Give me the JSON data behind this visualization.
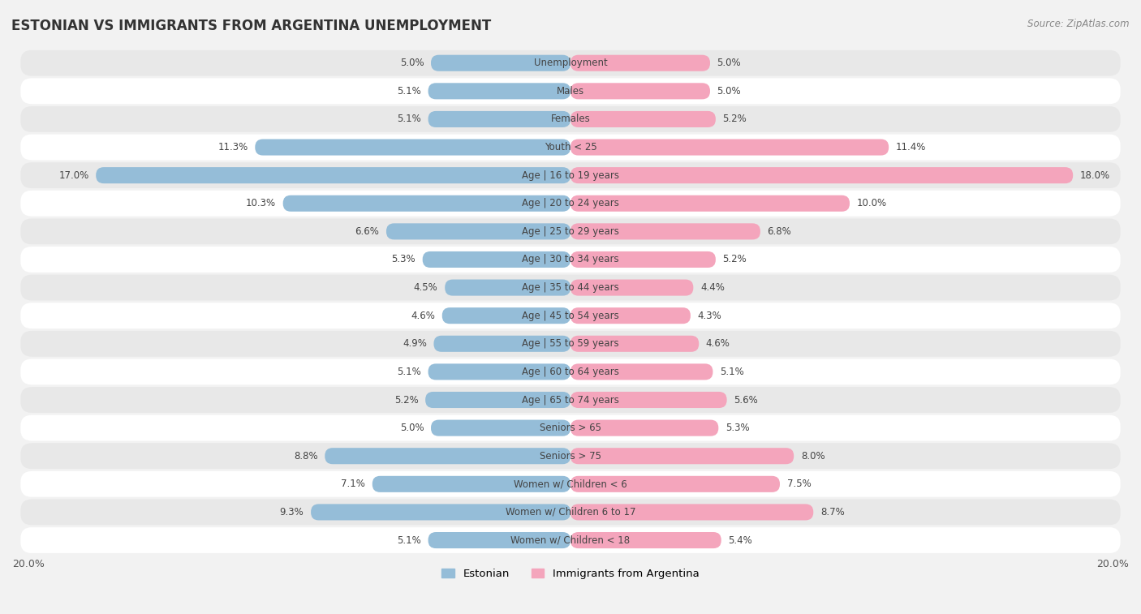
{
  "title": "ESTONIAN VS IMMIGRANTS FROM ARGENTINA UNEMPLOYMENT",
  "source": "Source: ZipAtlas.com",
  "categories": [
    "Unemployment",
    "Males",
    "Females",
    "Youth < 25",
    "Age | 16 to 19 years",
    "Age | 20 to 24 years",
    "Age | 25 to 29 years",
    "Age | 30 to 34 years",
    "Age | 35 to 44 years",
    "Age | 45 to 54 years",
    "Age | 55 to 59 years",
    "Age | 60 to 64 years",
    "Age | 65 to 74 years",
    "Seniors > 65",
    "Seniors > 75",
    "Women w/ Children < 6",
    "Women w/ Children 6 to 17",
    "Women w/ Children < 18"
  ],
  "estonian": [
    5.0,
    5.1,
    5.1,
    11.3,
    17.0,
    10.3,
    6.6,
    5.3,
    4.5,
    4.6,
    4.9,
    5.1,
    5.2,
    5.0,
    8.8,
    7.1,
    9.3,
    5.1
  ],
  "argentina": [
    5.0,
    5.0,
    5.2,
    11.4,
    18.0,
    10.0,
    6.8,
    5.2,
    4.4,
    4.3,
    4.6,
    5.1,
    5.6,
    5.3,
    8.0,
    7.5,
    8.7,
    5.4
  ],
  "estonian_color": "#95bdd8",
  "argentina_color": "#f4a5bc",
  "estonian_color_dark": "#6a9bbf",
  "argentina_color_dark": "#e8789a",
  "estonian_label": "Estonian",
  "argentina_label": "Immigrants from Argentina",
  "background_color": "#f2f2f2",
  "row_color_white": "#ffffff",
  "row_color_gray": "#e8e8e8",
  "xlim": 20.0,
  "bar_height": 0.58,
  "title_fontsize": 12,
  "label_fontsize": 8.5,
  "value_fontsize": 8.5
}
